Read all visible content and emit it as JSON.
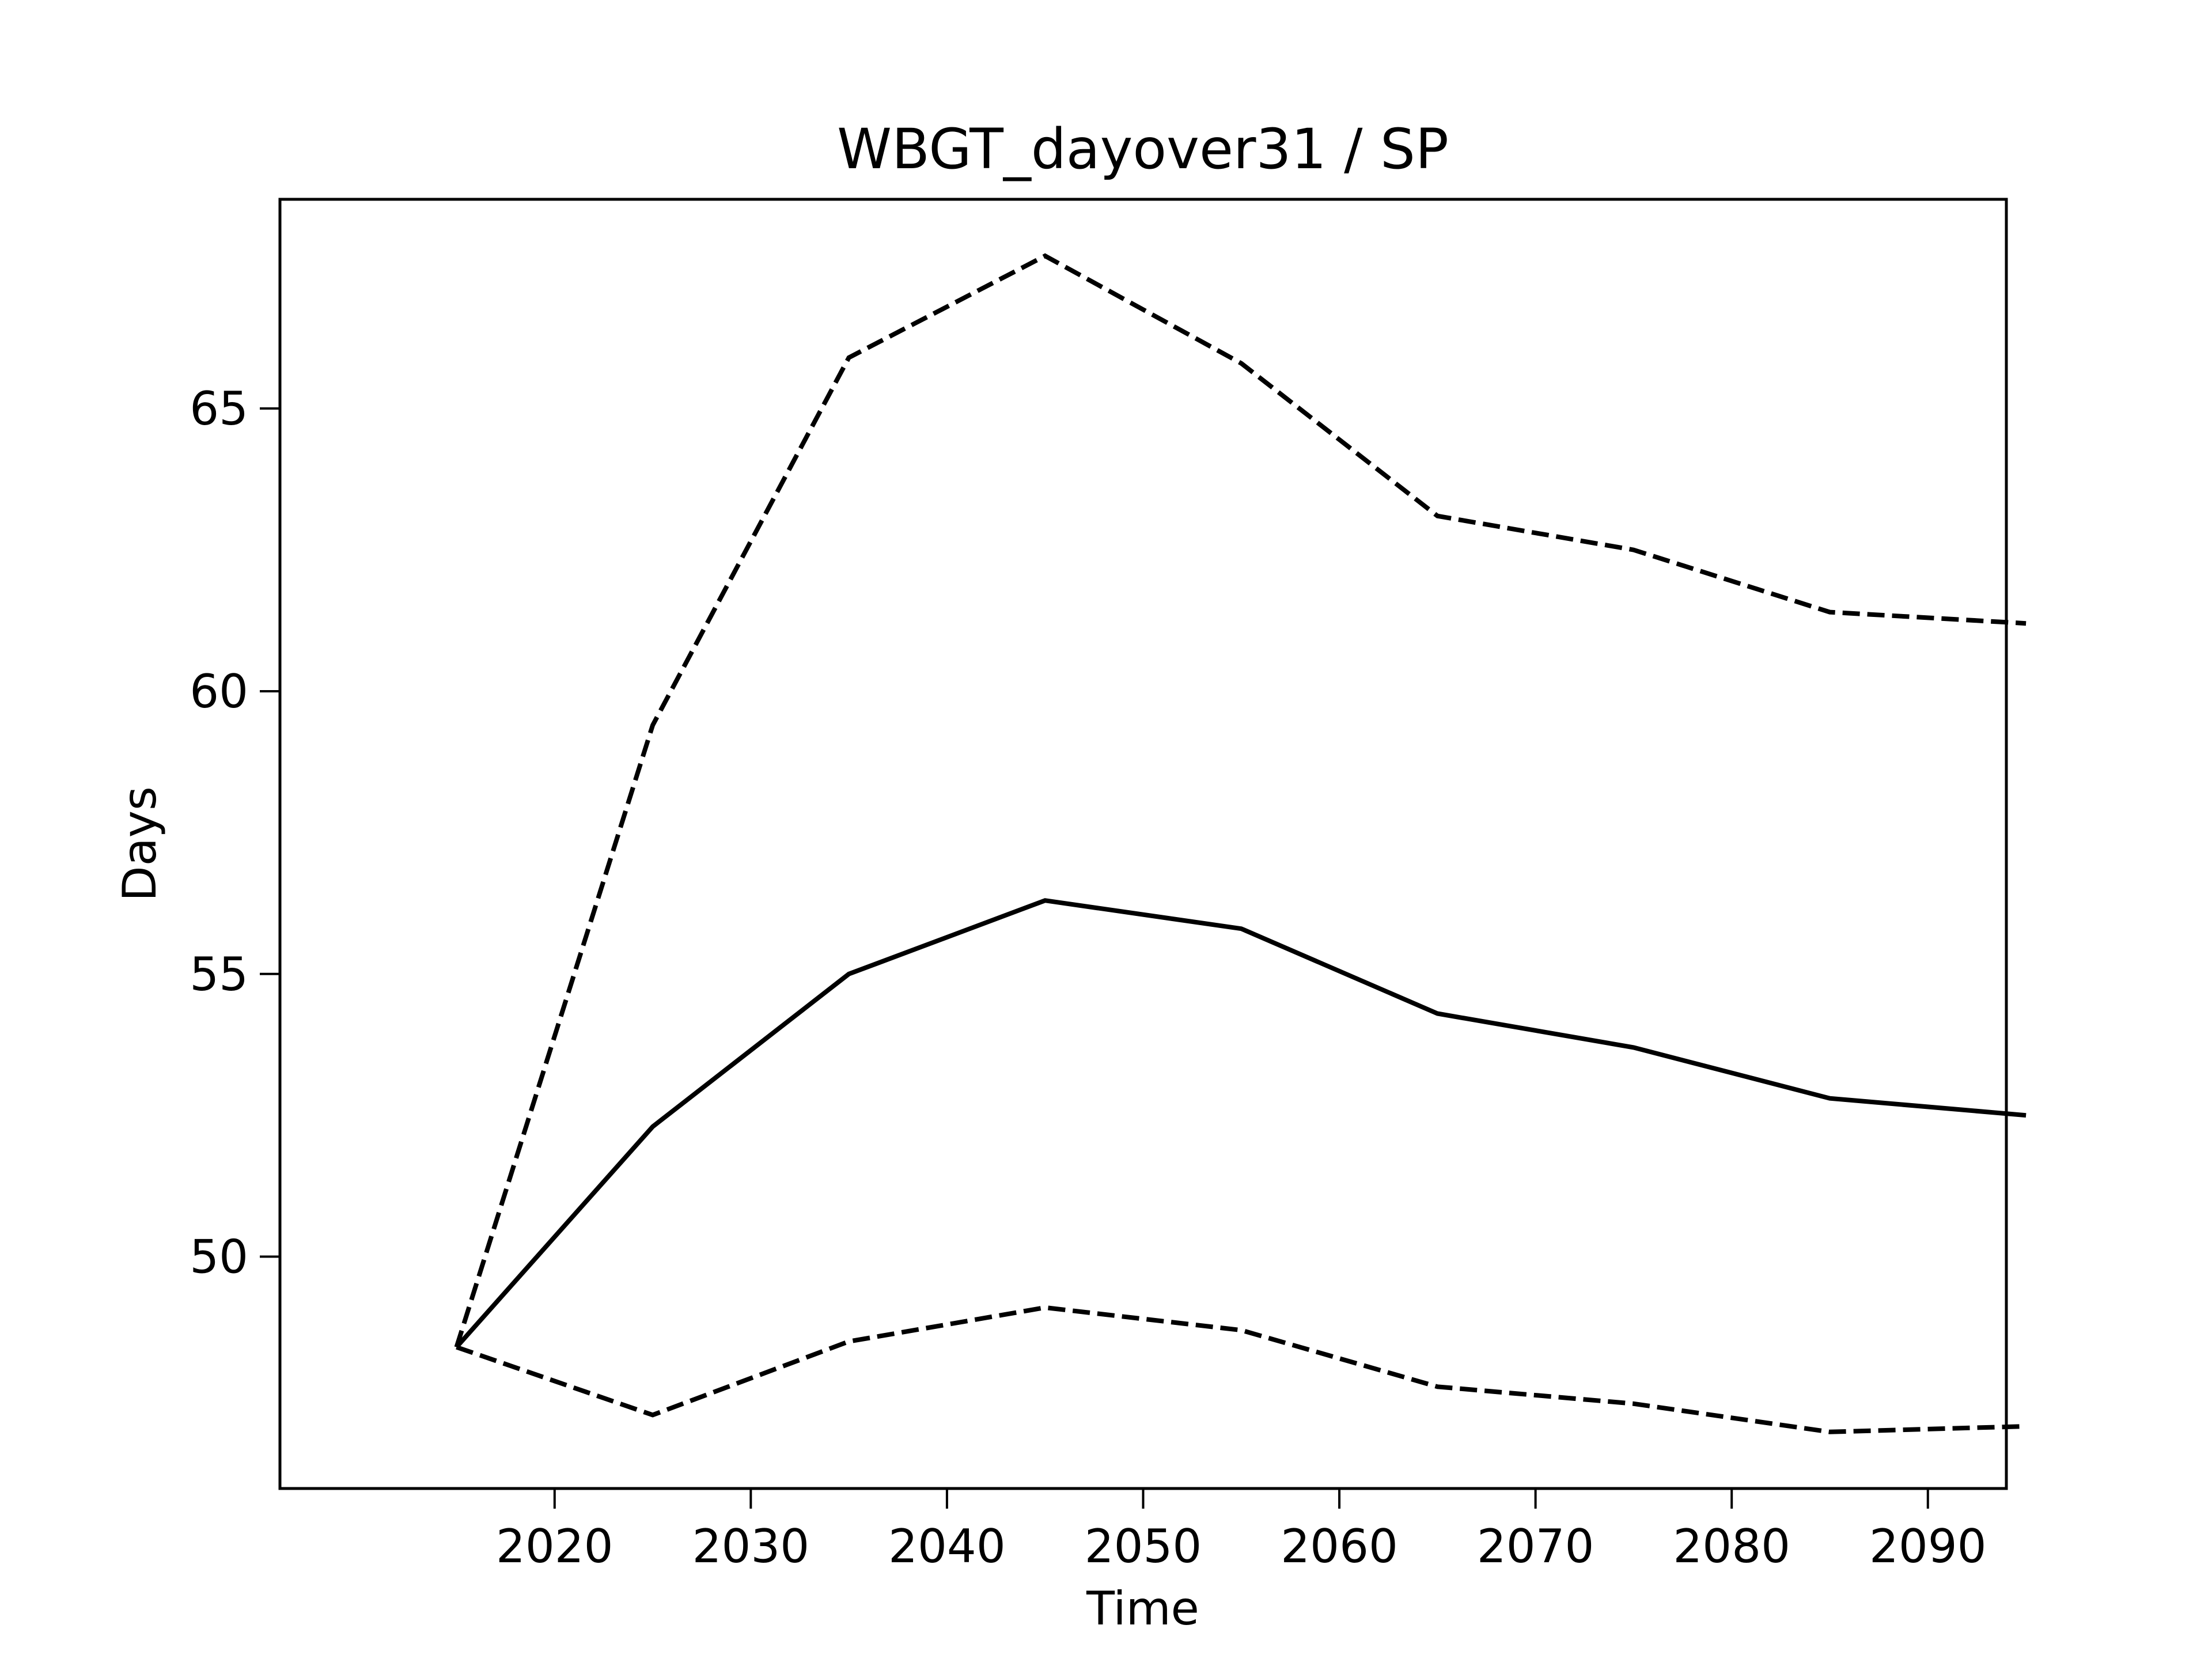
{
  "chart_data": {
    "type": "line",
    "title": "WBGT_dayover31 / SP",
    "xlabel": "Time",
    "ylabel": "Days",
    "x": [
      2015,
      2025,
      2035,
      2045,
      2055,
      2065,
      2075,
      2085,
      2095
    ],
    "xlim": [
      2006,
      2094
    ],
    "ylim": [
      45.9,
      68.7
    ],
    "xticks": [
      2020,
      2030,
      2040,
      2050,
      2060,
      2070,
      2080,
      2090
    ],
    "yticks": [
      50,
      55,
      60,
      65
    ],
    "grid": false,
    "legend": "none",
    "series": [
      {
        "style": "dashed",
        "color": "#000000",
        "values": [
          48.4,
          59.4,
          65.9,
          67.7,
          65.8,
          63.1,
          62.5,
          61.4,
          61.2
        ]
      },
      {
        "style": "solid",
        "color": "#000000",
        "values": [
          48.4,
          52.3,
          55.0,
          56.3,
          55.8,
          54.3,
          53.7,
          52.8,
          52.5
        ]
      },
      {
        "style": "dashed",
        "color": "#000000",
        "values": [
          48.4,
          47.2,
          48.5,
          49.1,
          48.7,
          47.7,
          47.4,
          46.9,
          47.0
        ]
      }
    ]
  }
}
